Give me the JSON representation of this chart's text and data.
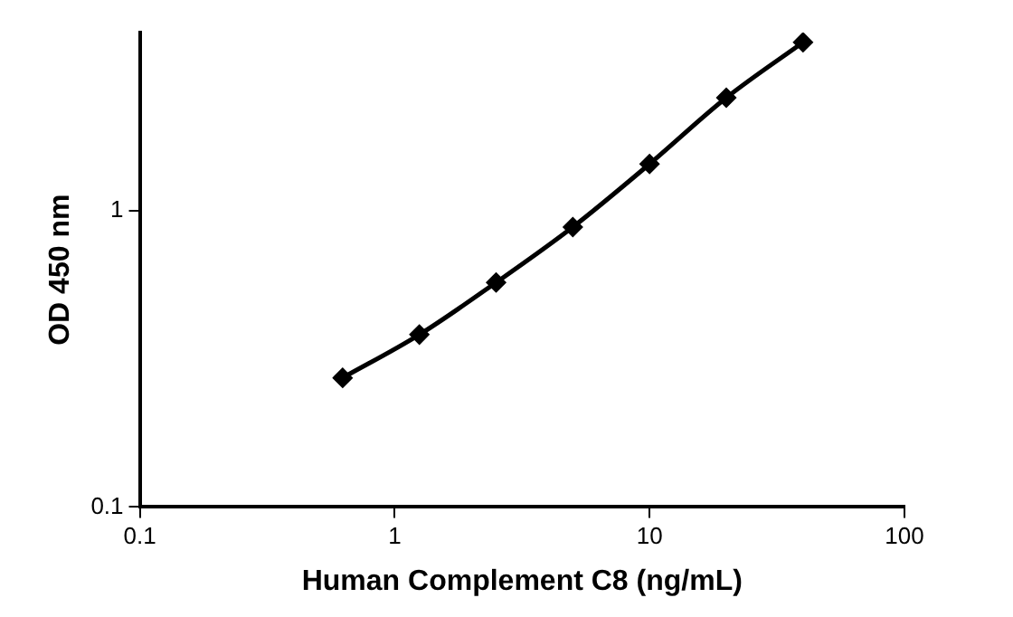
{
  "chart_data": {
    "type": "line",
    "xlabel": "Human Complement C8 (ng/mL)",
    "ylabel": "OD 450 nm",
    "x": [
      0.625,
      1.25,
      2.5,
      5,
      10,
      20,
      40
    ],
    "series": [
      {
        "color": "#000000",
        "values": [
          0.273,
          0.382,
          0.573,
          0.882,
          1.44,
          2.41,
          3.71
        ]
      }
    ],
    "log": "xy",
    "xlim": [
      0.1,
      100
    ],
    "xticks": [
      0.1,
      1,
      10,
      100
    ],
    "ylim": [
      0.1,
      4
    ],
    "yticks": [
      0.1,
      1
    ],
    "marker": "diamond",
    "line_style": "solid",
    "grid": false,
    "legend": false
  }
}
